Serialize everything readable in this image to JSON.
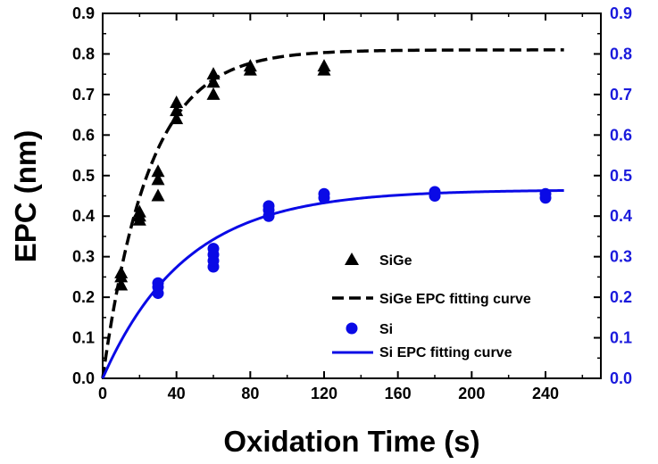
{
  "chart_data": {
    "type": "scatter",
    "title": "",
    "xlabel": "Oxidation Time (s)",
    "ylabel": "EPC (nm)",
    "xlim": [
      0,
      270
    ],
    "ylim": [
      0,
      0.9
    ],
    "y2lim": [
      0,
      0.9
    ],
    "x_ticks": [
      0,
      40,
      80,
      120,
      160,
      200,
      240
    ],
    "y_ticks": [
      0.0,
      0.1,
      0.2,
      0.3,
      0.4,
      0.5,
      0.6,
      0.7,
      0.8,
      0.9
    ],
    "y_tick_labels": [
      "0.0",
      "0.1",
      "0.2",
      "0.3",
      "0.4",
      "0.5",
      "0.6",
      "0.7",
      "0.8",
      "0.9"
    ],
    "y2_tick_labels": [
      "0.0",
      "0.1",
      "0.2",
      "0.3",
      "0.4",
      "0.5",
      "0.6",
      "0.7",
      "0.8",
      "0.9"
    ],
    "colors": {
      "axis": "#000000",
      "sige": "#000000",
      "si": "#0a0ae6",
      "right_axis": "#1a1adc"
    },
    "series": [
      {
        "name": "SiGe",
        "kind": "marker",
        "marker": "triangle",
        "color": "#000000",
        "x": [
          10,
          10,
          10,
          20,
          20,
          20,
          30,
          30,
          30,
          40,
          40,
          40,
          60,
          60,
          60,
          80,
          80,
          120,
          120
        ],
        "y": [
          0.23,
          0.25,
          0.26,
          0.39,
          0.4,
          0.41,
          0.45,
          0.49,
          0.51,
          0.64,
          0.66,
          0.68,
          0.7,
          0.73,
          0.75,
          0.76,
          0.77,
          0.76,
          0.77
        ]
      },
      {
        "name": "SiGe EPC fitting curve",
        "kind": "fit-dashed",
        "color": "#000000",
        "model": {
          "a": 0.81,
          "tau": 25,
          "x_end": 250
        }
      },
      {
        "name": "Si",
        "kind": "marker",
        "marker": "circle",
        "color": "#0a0ae6",
        "x": [
          30,
          30,
          30,
          60,
          60,
          60,
          60,
          90,
          90,
          90,
          120,
          120,
          180,
          180,
          240,
          240
        ],
        "y": [
          0.21,
          0.225,
          0.235,
          0.275,
          0.29,
          0.305,
          0.32,
          0.4,
          0.415,
          0.425,
          0.445,
          0.455,
          0.45,
          0.46,
          0.445,
          0.455
        ]
      },
      {
        "name": "Si EPC fitting curve",
        "kind": "fit-solid",
        "color": "#0a0ae6",
        "model": {
          "a": 0.465,
          "tau": 45,
          "x_end": 250
        }
      }
    ],
    "legend": {
      "position": "bottom-right",
      "entries": [
        "SiGe",
        "SiGe EPC fitting curve",
        "Si",
        "Si EPC fitting curve"
      ]
    }
  }
}
